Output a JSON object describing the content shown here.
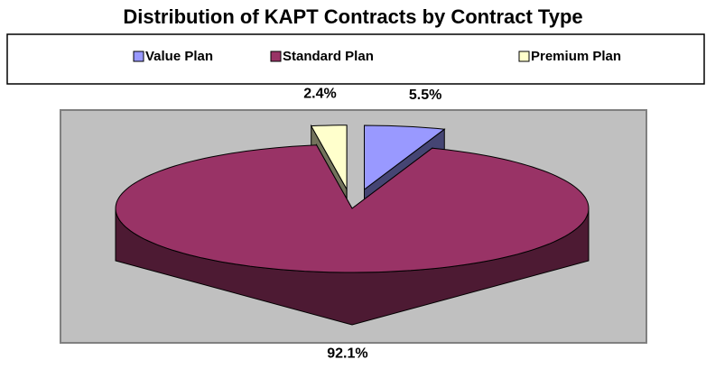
{
  "chart_data": {
    "type": "pie3d",
    "title": "Distribution of KAPT Contracts by Contract Type",
    "categories": [
      "Value Plan",
      "Standard Plan",
      "Premium Plan"
    ],
    "values": [
      5.5,
      92.1,
      2.4
    ],
    "value_labels": [
      "5.5%",
      "92.1%",
      "2.4%"
    ],
    "colors": [
      "#9999FF",
      "#993366",
      "#FFFFCC"
    ],
    "exploded": [
      true,
      false,
      true
    ],
    "legend": "top"
  }
}
